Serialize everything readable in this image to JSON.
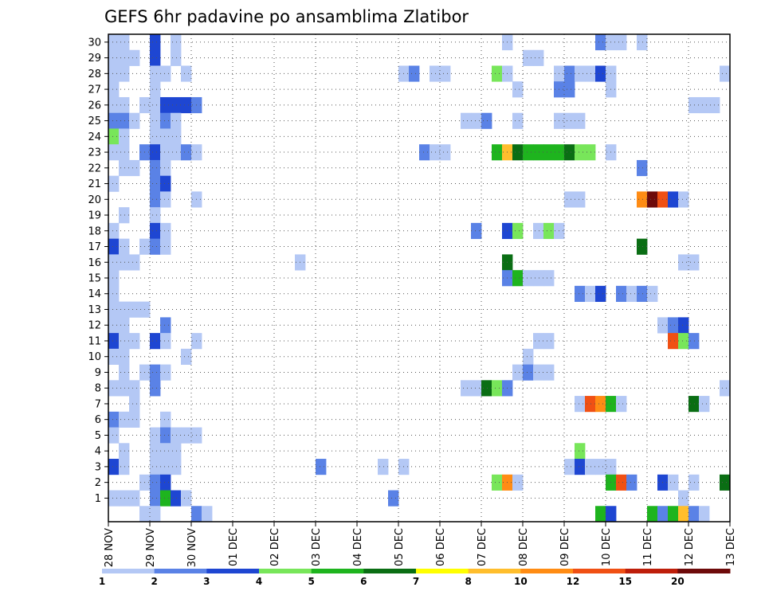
{
  "chart_data": {
    "type": "heatmap",
    "title": "GEFS 6hr padavine po ansamblima Zlatibor",
    "xlabel": "",
    "ylabel": "",
    "y_members": [
      "1",
      "2",
      "3",
      "4",
      "5",
      "6",
      "7",
      "8",
      "9",
      "10",
      "11",
      "12",
      "13",
      "14",
      "15",
      "16",
      "17",
      "18",
      "19",
      "20",
      "21",
      "22",
      "23",
      "24",
      "25",
      "26",
      "27",
      "28",
      "29",
      "30"
    ],
    "x_tick_labels": [
      "28 NOV",
      "29 NOV",
      "30 NOV",
      "01 DEC",
      "02 DEC",
      "03 DEC",
      "04 DEC",
      "05 DEC",
      "06 DEC",
      "07 DEC",
      "08 DEC",
      "09 DEC",
      "10 DEC",
      "11 DEC",
      "12 DEC",
      "13 DEC"
    ],
    "x_range_steps": [
      0,
      60
    ],
    "steps_per_day": 4,
    "legend": {
      "labels": [
        "1",
        "2",
        "3",
        "4",
        "5",
        "6",
        "7",
        "8",
        "10",
        "12",
        "15",
        "20"
      ],
      "colors": [
        "#b4c8f5",
        "#5a82e6",
        "#1e46d2",
        "#78e65a",
        "#1eb41e",
        "#0a6e14",
        "#ffff00",
        "#ffbe2d",
        "#ff8c14",
        "#f05014",
        "#be1e0a",
        "#6e0a0a"
      ]
    },
    "colors": [
      "#b4c8f5",
      "#5a82e6",
      "#1e46d2",
      "#78e65a",
      "#1eb41e",
      "#0a6e14",
      "#ffff00",
      "#ffbe2d",
      "#ff8c14",
      "#f05014",
      "#be1e0a",
      "#6e0a0a"
    ],
    "cells": [
      [
        0,
        30,
        0
      ],
      [
        1,
        30,
        0
      ],
      [
        4,
        30,
        2
      ],
      [
        6,
        30,
        0
      ],
      [
        38,
        30,
        0
      ],
      [
        47,
        30,
        1
      ],
      [
        48,
        30,
        0
      ],
      [
        49,
        30,
        0
      ],
      [
        51,
        30,
        0
      ],
      [
        0,
        29,
        0
      ],
      [
        1,
        29,
        0
      ],
      [
        2,
        29,
        0
      ],
      [
        4,
        29,
        2
      ],
      [
        6,
        29,
        0
      ],
      [
        40,
        29,
        0
      ],
      [
        41,
        29,
        0
      ],
      [
        0,
        28,
        0
      ],
      [
        1,
        28,
        0
      ],
      [
        4,
        28,
        0
      ],
      [
        5,
        28,
        0
      ],
      [
        7,
        28,
        0
      ],
      [
        28,
        28,
        0
      ],
      [
        29,
        28,
        1
      ],
      [
        31,
        28,
        0
      ],
      [
        32,
        28,
        0
      ],
      [
        37,
        28,
        3
      ],
      [
        38,
        28,
        0
      ],
      [
        43,
        28,
        0
      ],
      [
        44,
        28,
        1
      ],
      [
        45,
        28,
        0
      ],
      [
        46,
        28,
        0
      ],
      [
        47,
        28,
        2
      ],
      [
        48,
        28,
        0
      ],
      [
        59,
        28,
        0
      ],
      [
        0,
        27,
        0
      ],
      [
        4,
        27,
        0
      ],
      [
        39,
        27,
        0
      ],
      [
        43,
        27,
        1
      ],
      [
        44,
        27,
        1
      ],
      [
        48,
        27,
        0
      ],
      [
        0,
        26,
        0
      ],
      [
        1,
        26,
        0
      ],
      [
        3,
        26,
        0
      ],
      [
        4,
        26,
        0
      ],
      [
        5,
        26,
        2
      ],
      [
        6,
        26,
        2
      ],
      [
        7,
        26,
        2
      ],
      [
        8,
        26,
        1
      ],
      [
        56,
        26,
        0
      ],
      [
        57,
        26,
        0
      ],
      [
        58,
        26,
        0
      ],
      [
        0,
        25,
        1
      ],
      [
        1,
        25,
        1
      ],
      [
        2,
        25,
        0
      ],
      [
        4,
        25,
        0
      ],
      [
        5,
        25,
        1
      ],
      [
        6,
        25,
        0
      ],
      [
        34,
        25,
        0
      ],
      [
        35,
        25,
        0
      ],
      [
        36,
        25,
        1
      ],
      [
        39,
        25,
        0
      ],
      [
        43,
        25,
        0
      ],
      [
        44,
        25,
        0
      ],
      [
        45,
        25,
        0
      ],
      [
        0,
        24,
        3
      ],
      [
        1,
        24,
        0
      ],
      [
        4,
        24,
        0
      ],
      [
        5,
        24,
        0
      ],
      [
        6,
        24,
        0
      ],
      [
        0,
        23,
        0
      ],
      [
        1,
        23,
        0
      ],
      [
        3,
        23,
        1
      ],
      [
        4,
        23,
        2
      ],
      [
        5,
        23,
        0
      ],
      [
        6,
        23,
        0
      ],
      [
        7,
        23,
        1
      ],
      [
        8,
        23,
        0
      ],
      [
        30,
        23,
        1
      ],
      [
        31,
        23,
        0
      ],
      [
        32,
        23,
        0
      ],
      [
        37,
        23,
        4
      ],
      [
        38,
        23,
        7
      ],
      [
        39,
        23,
        5
      ],
      [
        40,
        23,
        4
      ],
      [
        41,
        23,
        4
      ],
      [
        42,
        23,
        4
      ],
      [
        43,
        23,
        4
      ],
      [
        44,
        23,
        5
      ],
      [
        45,
        23,
        3
      ],
      [
        46,
        23,
        3
      ],
      [
        48,
        23,
        0
      ],
      [
        1,
        22,
        0
      ],
      [
        2,
        22,
        0
      ],
      [
        4,
        22,
        1
      ],
      [
        5,
        22,
        0
      ],
      [
        51,
        22,
        1
      ],
      [
        0,
        21,
        0
      ],
      [
        4,
        21,
        1
      ],
      [
        5,
        21,
        2
      ],
      [
        4,
        20,
        1
      ],
      [
        5,
        20,
        0
      ],
      [
        8,
        20,
        0
      ],
      [
        44,
        20,
        0
      ],
      [
        45,
        20,
        0
      ],
      [
        51,
        20,
        8
      ],
      [
        52,
        20,
        11
      ],
      [
        53,
        20,
        9
      ],
      [
        54,
        20,
        2
      ],
      [
        55,
        20,
        0
      ],
      [
        1,
        19,
        0
      ],
      [
        4,
        19,
        0
      ],
      [
        0,
        18,
        0
      ],
      [
        4,
        18,
        2
      ],
      [
        5,
        18,
        0
      ],
      [
        35,
        18,
        1
      ],
      [
        38,
        18,
        2
      ],
      [
        39,
        18,
        3
      ],
      [
        41,
        18,
        0
      ],
      [
        42,
        18,
        3
      ],
      [
        43,
        18,
        0
      ],
      [
        0,
        17,
        2
      ],
      [
        1,
        17,
        0
      ],
      [
        3,
        17,
        0
      ],
      [
        4,
        17,
        1
      ],
      [
        5,
        17,
        0
      ],
      [
        51,
        17,
        5
      ],
      [
        0,
        16,
        0
      ],
      [
        1,
        16,
        0
      ],
      [
        2,
        16,
        0
      ],
      [
        18,
        16,
        0
      ],
      [
        38,
        16,
        5
      ],
      [
        55,
        16,
        0
      ],
      [
        56,
        16,
        0
      ],
      [
        0,
        15,
        0
      ],
      [
        38,
        15,
        1
      ],
      [
        39,
        15,
        4
      ],
      [
        40,
        15,
        0
      ],
      [
        41,
        15,
        0
      ],
      [
        42,
        15,
        0
      ],
      [
        0,
        14,
        0
      ],
      [
        45,
        14,
        1
      ],
      [
        46,
        14,
        0
      ],
      [
        47,
        14,
        2
      ],
      [
        49,
        14,
        1
      ],
      [
        50,
        14,
        0
      ],
      [
        51,
        14,
        1
      ],
      [
        52,
        14,
        0
      ],
      [
        0,
        13,
        0
      ],
      [
        1,
        13,
        0
      ],
      [
        2,
        13,
        0
      ],
      [
        3,
        13,
        0
      ],
      [
        0,
        12,
        0
      ],
      [
        1,
        12,
        0
      ],
      [
        5,
        12,
        1
      ],
      [
        53,
        12,
        0
      ],
      [
        54,
        12,
        1
      ],
      [
        55,
        12,
        2
      ],
      [
        0,
        11,
        2
      ],
      [
        1,
        11,
        0
      ],
      [
        2,
        11,
        0
      ],
      [
        4,
        11,
        2
      ],
      [
        5,
        11,
        0
      ],
      [
        8,
        11,
        0
      ],
      [
        41,
        11,
        0
      ],
      [
        42,
        11,
        0
      ],
      [
        54,
        11,
        9
      ],
      [
        55,
        11,
        3
      ],
      [
        56,
        11,
        1
      ],
      [
        0,
        10,
        0
      ],
      [
        1,
        10,
        0
      ],
      [
        7,
        10,
        0
      ],
      [
        40,
        10,
        0
      ],
      [
        1,
        9,
        0
      ],
      [
        3,
        9,
        0
      ],
      [
        4,
        9,
        1
      ],
      [
        5,
        9,
        0
      ],
      [
        39,
        9,
        0
      ],
      [
        40,
        9,
        1
      ],
      [
        41,
        9,
        0
      ],
      [
        42,
        9,
        0
      ],
      [
        0,
        8,
        0
      ],
      [
        1,
        8,
        0
      ],
      [
        2,
        8,
        0
      ],
      [
        4,
        8,
        1
      ],
      [
        34,
        8,
        0
      ],
      [
        35,
        8,
        0
      ],
      [
        36,
        8,
        5
      ],
      [
        37,
        8,
        3
      ],
      [
        38,
        8,
        1
      ],
      [
        59,
        8,
        0
      ],
      [
        2,
        7,
        0
      ],
      [
        45,
        7,
        0
      ],
      [
        46,
        7,
        9
      ],
      [
        47,
        7,
        8
      ],
      [
        48,
        7,
        4
      ],
      [
        49,
        7,
        0
      ],
      [
        56,
        7,
        5
      ],
      [
        57,
        7,
        0
      ],
      [
        0,
        6,
        1
      ],
      [
        1,
        6,
        0
      ],
      [
        2,
        6,
        0
      ],
      [
        5,
        6,
        0
      ],
      [
        0,
        5,
        0
      ],
      [
        4,
        5,
        0
      ],
      [
        5,
        5,
        1
      ],
      [
        6,
        5,
        0
      ],
      [
        7,
        5,
        0
      ],
      [
        8,
        5,
        0
      ],
      [
        1,
        4,
        0
      ],
      [
        4,
        4,
        0
      ],
      [
        5,
        4,
        0
      ],
      [
        6,
        4,
        0
      ],
      [
        45,
        4,
        3
      ],
      [
        0,
        3,
        2
      ],
      [
        1,
        3,
        0
      ],
      [
        4,
        3,
        0
      ],
      [
        5,
        3,
        0
      ],
      [
        6,
        3,
        0
      ],
      [
        20,
        3,
        1
      ],
      [
        26,
        3,
        0
      ],
      [
        28,
        3,
        0
      ],
      [
        44,
        3,
        0
      ],
      [
        45,
        3,
        2
      ],
      [
        46,
        3,
        0
      ],
      [
        47,
        3,
        0
      ],
      [
        48,
        3,
        0
      ],
      [
        3,
        2,
        0
      ],
      [
        4,
        2,
        1
      ],
      [
        5,
        2,
        2
      ],
      [
        37,
        2,
        3
      ],
      [
        38,
        2,
        8
      ],
      [
        39,
        2,
        0
      ],
      [
        48,
        2,
        4
      ],
      [
        49,
        2,
        9
      ],
      [
        50,
        2,
        1
      ],
      [
        53,
        2,
        2
      ],
      [
        54,
        2,
        0
      ],
      [
        56,
        2,
        0
      ],
      [
        59,
        2,
        5
      ],
      [
        0,
        1,
        0
      ],
      [
        1,
        1,
        0
      ],
      [
        2,
        1,
        0
      ],
      [
        4,
        1,
        1
      ],
      [
        5,
        1,
        4
      ],
      [
        6,
        1,
        2
      ],
      [
        7,
        1,
        0
      ],
      [
        27,
        1,
        1
      ],
      [
        55,
        1,
        0
      ],
      [
        3,
        0,
        0
      ],
      [
        4,
        0,
        0
      ],
      [
        8,
        0,
        1
      ],
      [
        9,
        0,
        0
      ],
      [
        47,
        0,
        4
      ],
      [
        48,
        0,
        2
      ],
      [
        52,
        0,
        4
      ],
      [
        53,
        0,
        1
      ],
      [
        54,
        0,
        4
      ],
      [
        55,
        0,
        7
      ],
      [
        56,
        0,
        1
      ],
      [
        57,
        0,
        0
      ]
    ]
  }
}
